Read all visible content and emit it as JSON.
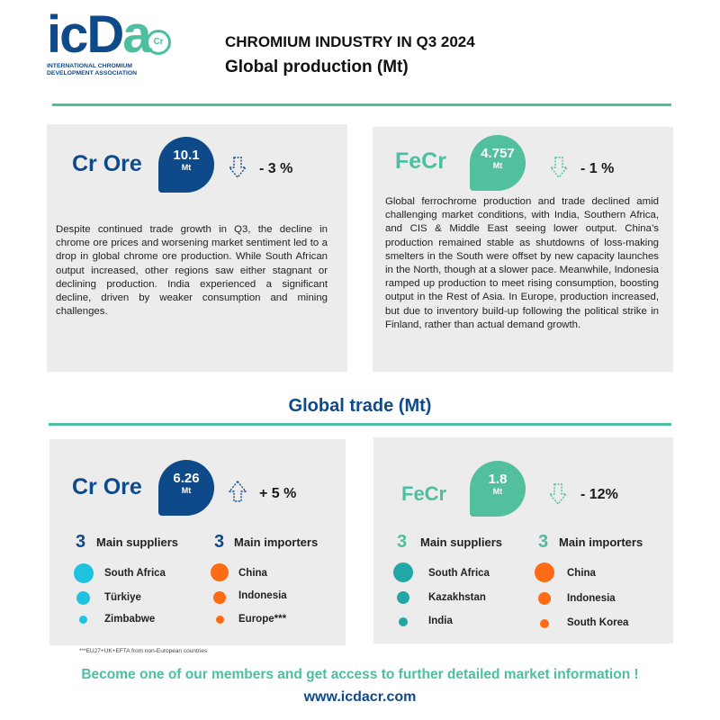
{
  "logo": {
    "wordmark_main": "icD",
    "wordmark_accent": "a",
    "badge": "Cr",
    "subtitle": "INTERNATIONAL CHROMIUM DEVELOPMENT ASSOCIATION"
  },
  "header": {
    "title": "CHROMIUM INDUSTRY IN Q3 2024",
    "subtitle": "Global production (Mt)"
  },
  "production": {
    "cr_ore": {
      "label": "Cr Ore",
      "value": "10.1",
      "unit": "Mt",
      "change": "- 3 %",
      "text": "Despite continued trade growth in Q3, the decline in chrome ore prices and worsening market sentiment led to a drop in global chrome ore production. While South African output increased, other regions saw either stagnant or declining production. India experienced a significant decline, driven by weaker consumption and mining challenges."
    },
    "fecr": {
      "label": "FeCr",
      "value": "4.757",
      "unit": "Mt",
      "change": "- 1 %",
      "text": "Global ferrochrome production and trade declined amid challenging market conditions, with India, Southern Africa, and CIS & Middle East seeing lower output. China’s production remained stable as shutdowns of loss-making smelters in the South were offset by new capacity launches in the North, though at a slower pace. Meanwhile, Indonesia ramped up production to meet rising consumption, boosting output in the Rest of Asia. In Europe, production increased, but due to inventory build-up following the political strike in Finland, rather than actual demand growth."
    }
  },
  "trade": {
    "title": "Global trade (Mt)",
    "cr_ore": {
      "label": "Cr Ore",
      "value": "6.26",
      "unit": "Mt",
      "change": "+ 5 %",
      "suppliers_count": "3",
      "suppliers_label": "Main suppliers",
      "importers_count": "3",
      "importers_label": "Main importers",
      "suppliers": [
        "South Africa",
        "Türkiye",
        "Zimbabwe"
      ],
      "importers": [
        "China",
        "Indonesia",
        "Europe***"
      ]
    },
    "fecr": {
      "label": "FeCr",
      "value": "1.8",
      "unit": "Mt",
      "change": "- 12%",
      "suppliers_count": "3",
      "suppliers_label": "Main suppliers",
      "importers_count": "3",
      "importers_label": "Main importers",
      "suppliers": [
        "South Africa",
        "Kazakhstan",
        "India"
      ],
      "importers": [
        "China",
        "Indonesia",
        "South Korea"
      ]
    },
    "footnote": "***EU27+UK+EFTA from non-European countries"
  },
  "footer": {
    "cta": "Become one of our members and get access to further detailed market information !",
    "url": "www.icdacr.com"
  },
  "colors": {
    "navy": "#0e4a8a",
    "teal": "#4dbfa0",
    "panel": "#ececec",
    "supplier_dot": "#1fc3e0",
    "importer_dot": "#ff6a14",
    "fecr_supplier_dot": "#23a7a6"
  },
  "icons": {
    "down": "arrow-down-icon",
    "up": "arrow-up-icon"
  }
}
